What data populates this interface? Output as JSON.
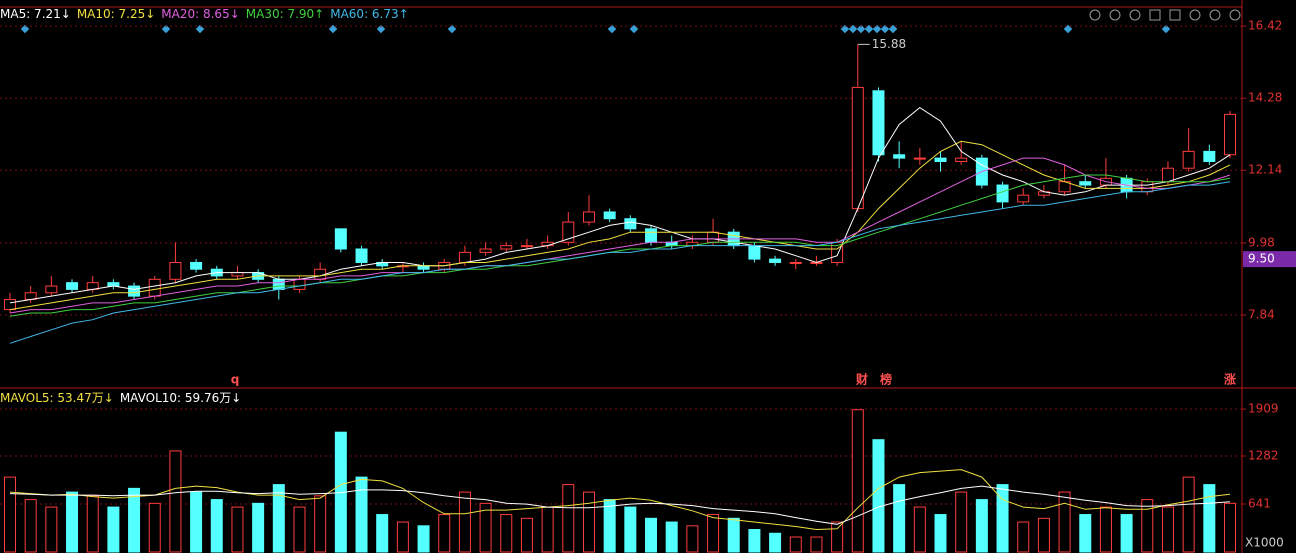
{
  "chart_data": [
    {
      "type": "candlestick",
      "up_color": "#ff3c3c",
      "down_color": "#54ffff",
      "grid": true,
      "ylim": [
        5.73,
        16.96
      ],
      "yticks": [
        7.84,
        9.98,
        12.14,
        14.28,
        16.42
      ],
      "price_marker": {
        "value": 9.5,
        "label": "9.50"
      },
      "annotations": [
        "q",
        "财",
        "榜",
        "涨"
      ],
      "candles": [
        [
          8.0,
          8.5,
          7.9,
          8.3
        ],
        [
          8.3,
          8.7,
          8.2,
          8.5
        ],
        [
          8.5,
          9.0,
          8.4,
          8.7
        ],
        [
          8.8,
          8.9,
          8.5,
          8.6
        ],
        [
          8.6,
          9.0,
          8.5,
          8.8
        ],
        [
          8.8,
          8.9,
          8.6,
          8.7
        ],
        [
          8.7,
          8.8,
          8.3,
          8.4
        ],
        [
          8.4,
          9.0,
          8.3,
          8.9
        ],
        [
          8.9,
          10.0,
          8.8,
          9.4
        ],
        [
          9.4,
          9.5,
          9.1,
          9.2
        ],
        [
          9.2,
          9.3,
          8.9,
          9.0
        ],
        [
          9.0,
          9.3,
          8.9,
          9.1
        ],
        [
          9.1,
          9.2,
          8.8,
          8.9
        ],
        [
          8.9,
          9.0,
          8.3,
          8.6
        ],
        [
          8.6,
          9.0,
          8.5,
          8.9
        ],
        [
          8.9,
          9.4,
          8.8,
          9.2
        ],
        [
          10.4,
          10.4,
          9.7,
          9.8
        ],
        [
          9.8,
          9.9,
          9.3,
          9.4
        ],
        [
          9.4,
          9.5,
          9.2,
          9.3
        ],
        [
          9.3,
          9.4,
          9.1,
          9.3
        ],
        [
          9.3,
          9.4,
          9.1,
          9.2
        ],
        [
          9.2,
          9.5,
          9.1,
          9.4
        ],
        [
          9.4,
          9.9,
          9.3,
          9.7
        ],
        [
          9.7,
          10.0,
          9.6,
          9.8
        ],
        [
          9.8,
          10.0,
          9.7,
          9.9
        ],
        [
          9.9,
          10.1,
          9.8,
          9.9
        ],
        [
          9.9,
          10.2,
          9.8,
          10.0
        ],
        [
          10.0,
          10.9,
          9.9,
          10.6
        ],
        [
          10.6,
          11.4,
          10.5,
          10.9
        ],
        [
          10.9,
          11.0,
          10.6,
          10.7
        ],
        [
          10.7,
          10.8,
          10.3,
          10.4
        ],
        [
          10.4,
          10.5,
          9.9,
          10.0
        ],
        [
          10.0,
          10.2,
          9.8,
          9.9
        ],
        [
          9.9,
          10.2,
          9.8,
          10.0
        ],
        [
          10.0,
          10.7,
          9.9,
          10.3
        ],
        [
          10.3,
          10.4,
          9.8,
          9.9
        ],
        [
          9.9,
          10.0,
          9.4,
          9.5
        ],
        [
          9.5,
          9.6,
          9.3,
          9.4
        ],
        [
          9.4,
          9.5,
          9.2,
          9.4
        ],
        [
          9.4,
          9.6,
          9.3,
          9.4
        ],
        [
          9.4,
          10.1,
          9.3,
          10.0
        ],
        [
          11.0,
          15.88,
          10.9,
          14.6
        ],
        [
          14.5,
          14.6,
          12.4,
          12.6
        ],
        [
          12.6,
          13.0,
          12.2,
          12.5
        ],
        [
          12.5,
          12.8,
          12.3,
          12.5
        ],
        [
          12.5,
          12.7,
          12.1,
          12.4
        ],
        [
          12.4,
          13.0,
          12.3,
          12.5
        ],
        [
          12.5,
          12.6,
          11.6,
          11.7
        ],
        [
          11.7,
          11.8,
          11.0,
          11.2
        ],
        [
          11.2,
          11.6,
          11.1,
          11.4
        ],
        [
          11.4,
          11.7,
          11.3,
          11.5
        ],
        [
          11.5,
          12.3,
          11.4,
          11.8
        ],
        [
          11.8,
          12.0,
          11.6,
          11.7
        ],
        [
          11.7,
          12.5,
          11.6,
          11.9
        ],
        [
          11.9,
          12.0,
          11.3,
          11.5
        ],
        [
          11.5,
          11.9,
          11.4,
          11.8
        ],
        [
          11.8,
          12.4,
          11.7,
          12.2
        ],
        [
          12.2,
          13.4,
          12.1,
          12.7
        ],
        [
          12.7,
          12.9,
          12.3,
          12.4
        ],
        [
          12.6,
          13.9,
          12.5,
          13.8
        ]
      ],
      "series": [
        {
          "name": "MA5: 7.21↓",
          "color": "#ffffff",
          "values": [
            8.2,
            8.3,
            8.4,
            8.5,
            8.6,
            8.7,
            8.6,
            8.7,
            8.8,
            9.0,
            9.1,
            9.1,
            9.1,
            8.9,
            8.9,
            9.0,
            9.2,
            9.3,
            9.4,
            9.4,
            9.3,
            9.3,
            9.4,
            9.5,
            9.7,
            9.8,
            9.9,
            10.1,
            10.3,
            10.5,
            10.6,
            10.5,
            10.3,
            10.1,
            10.1,
            10.0,
            9.9,
            9.8,
            9.6,
            9.4,
            9.6,
            11.0,
            12.5,
            13.5,
            14.0,
            13.6,
            12.7,
            12.3,
            12.0,
            11.8,
            11.5,
            11.4,
            11.5,
            11.7,
            11.7,
            11.7,
            11.8,
            12.0,
            12.2,
            12.6
          ]
        },
        {
          "name": "MA10: 7.25↓",
          "color": "#f0e040",
          "values": [
            8.0,
            8.1,
            8.2,
            8.3,
            8.4,
            8.5,
            8.5,
            8.6,
            8.7,
            8.8,
            8.9,
            8.9,
            9.0,
            9.0,
            9.0,
            9.0,
            9.1,
            9.2,
            9.2,
            9.3,
            9.3,
            9.3,
            9.4,
            9.4,
            9.5,
            9.6,
            9.7,
            9.8,
            10.0,
            10.1,
            10.3,
            10.3,
            10.3,
            10.3,
            10.3,
            10.2,
            10.1,
            10.0,
            9.9,
            9.8,
            9.8,
            10.3,
            11.0,
            11.6,
            12.2,
            12.7,
            13.0,
            12.9,
            12.6,
            12.3,
            12.0,
            11.8,
            11.6,
            11.6,
            11.6,
            11.6,
            11.7,
            11.8,
            12.0,
            12.3
          ]
        },
        {
          "name": "MA20: 8.65↓",
          "color": "#e060e0",
          "values": [
            7.9,
            8.0,
            8.0,
            8.1,
            8.2,
            8.2,
            8.3,
            8.4,
            8.5,
            8.6,
            8.7,
            8.7,
            8.8,
            8.8,
            8.9,
            8.9,
            9.0,
            9.0,
            9.1,
            9.1,
            9.1,
            9.2,
            9.2,
            9.3,
            9.3,
            9.4,
            9.5,
            9.6,
            9.7,
            9.8,
            9.9,
            10.0,
            10.0,
            10.1,
            10.1,
            10.1,
            10.1,
            10.1,
            10.1,
            10.0,
            10.0,
            10.3,
            10.6,
            10.9,
            11.2,
            11.5,
            11.8,
            12.1,
            12.3,
            12.5,
            12.5,
            12.3,
            12.0,
            11.8,
            11.7,
            11.6,
            11.6,
            11.7,
            11.8,
            12.0
          ]
        },
        {
          "name": "MA30: 7.90↑",
          "color": "#40d040",
          "values": [
            7.8,
            7.9,
            7.9,
            8.0,
            8.0,
            8.1,
            8.2,
            8.2,
            8.3,
            8.4,
            8.5,
            8.5,
            8.6,
            8.7,
            8.7,
            8.8,
            8.8,
            8.9,
            9.0,
            9.0,
            9.1,
            9.1,
            9.2,
            9.2,
            9.3,
            9.3,
            9.4,
            9.5,
            9.6,
            9.7,
            9.8,
            9.8,
            9.9,
            9.9,
            10.0,
            10.0,
            10.0,
            10.0,
            10.0,
            9.9,
            9.9,
            10.1,
            10.3,
            10.5,
            10.7,
            10.9,
            11.1,
            11.3,
            11.5,
            11.7,
            11.8,
            11.9,
            12.0,
            12.0,
            11.9,
            11.8,
            11.8,
            11.8,
            11.8,
            11.9
          ]
        },
        {
          "name": "MA60: 6.73↑",
          "color": "#40b8e8",
          "values": [
            7.0,
            7.2,
            7.4,
            7.6,
            7.7,
            7.9,
            8.0,
            8.1,
            8.2,
            8.3,
            8.4,
            8.5,
            8.5,
            8.6,
            8.7,
            8.8,
            8.9,
            8.9,
            9.0,
            9.1,
            9.1,
            9.2,
            9.2,
            9.3,
            9.3,
            9.4,
            9.5,
            9.5,
            9.6,
            9.7,
            9.7,
            9.8,
            9.8,
            9.9,
            9.9,
            9.9,
            9.9,
            9.9,
            9.9,
            9.9,
            10.0,
            10.2,
            10.4,
            10.5,
            10.6,
            10.7,
            10.8,
            10.9,
            11.0,
            11.1,
            11.1,
            11.2,
            11.3,
            11.4,
            11.5,
            11.5,
            11.6,
            11.7,
            11.7,
            11.8
          ]
        }
      ]
    },
    {
      "type": "bar",
      "ylim": [
        0,
        2030
      ],
      "yticks": [
        641,
        1282,
        1909
      ],
      "unit_label": "X1000",
      "values": [
        1000,
        700,
        600,
        800,
        750,
        600,
        850,
        650,
        1350,
        800,
        700,
        600,
        650,
        900,
        600,
        750,
        1600,
        1000,
        500,
        400,
        350,
        500,
        800,
        650,
        500,
        450,
        600,
        900,
        800,
        700,
        600,
        450,
        400,
        350,
        500,
        450,
        300,
        250,
        200,
        200,
        400,
        1900,
        1500,
        900,
        600,
        500,
        800,
        700,
        900,
        400,
        450,
        800,
        500,
        600,
        500,
        700,
        600,
        1000,
        900,
        650
      ],
      "series": [
        {
          "name": "MAVOL5: 53.47万↓",
          "color": "#f0e040",
          "values": [
            800,
            780,
            760,
            770,
            740,
            720,
            740,
            760,
            850,
            880,
            860,
            800,
            760,
            760,
            700,
            720,
            900,
            970,
            950,
            850,
            660,
            510,
            510,
            560,
            560,
            580,
            600,
            620,
            650,
            690,
            720,
            690,
            620,
            550,
            460,
            430,
            400,
            370,
            340,
            300,
            310,
            590,
            850,
            1000,
            1060,
            1080,
            1100,
            1000,
            700,
            600,
            580,
            650,
            570,
            590,
            570,
            570,
            630,
            680,
            740,
            770
          ]
        },
        {
          "name": "MAVOL10: 59.76万↓",
          "color": "#ffffff",
          "values": [
            780,
            770,
            760,
            760,
            760,
            750,
            760,
            760,
            790,
            810,
            810,
            790,
            780,
            790,
            770,
            780,
            790,
            830,
            830,
            820,
            790,
            750,
            720,
            700,
            650,
            640,
            600,
            590,
            590,
            610,
            640,
            650,
            640,
            620,
            580,
            560,
            540,
            510,
            460,
            410,
            370,
            480,
            600,
            680,
            740,
            790,
            850,
            880,
            840,
            800,
            770,
            730,
            690,
            660,
            620,
            610,
            620,
            640,
            650,
            670
          ]
        }
      ]
    }
  ]
}
